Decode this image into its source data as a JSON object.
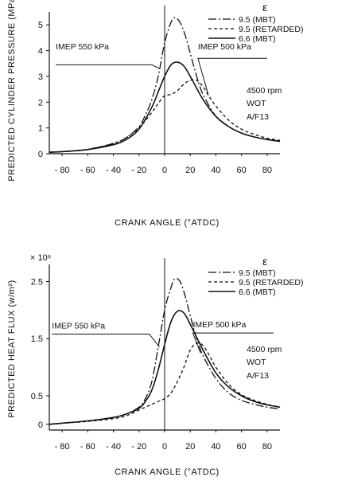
{
  "chart_data": [
    {
      "type": "line",
      "xlabel": "CRANK ANGLE (°ATDC)",
      "ylabel": "PREDICTED CYLINDER PRESSURE (MPa)",
      "y_multiplier": "",
      "xlim": [
        -90,
        90
      ],
      "ylim": [
        0,
        5.5
      ],
      "x_ticks": [
        -80,
        -60,
        -40,
        -20,
        0,
        20,
        40,
        60,
        80
      ],
      "x_tick_labels": [
        "- 80",
        "- 60",
        "- 40",
        "- 20",
        "0",
        "20",
        "40",
        "60",
        "80"
      ],
      "y_ticks": [
        0,
        1,
        2,
        3,
        4,
        5
      ],
      "y_tick_labels": [
        "0",
        "1",
        "2",
        "3",
        "4",
        "5"
      ],
      "legend_title": "ε",
      "legend_placement": "top-right",
      "conditions": [
        "4500 rpm",
        "WOT",
        "A/F13"
      ],
      "annotations": [
        {
          "text": "IMEP 550 kPa",
          "target_series": "9.5 (MBT)",
          "target_x": -4,
          "target_y": 3.3,
          "label_x": -85,
          "label_y": 4.05,
          "label_y_line": 3.45,
          "line_x_end": -10
        },
        {
          "text": "IMEP 500 kPa",
          "target_series": "6.6 (MBT)",
          "target_x": 34,
          "target_y": 2.3,
          "label_x": 26,
          "label_y": 4.05,
          "label_y_line": 3.7,
          "line_x_end": 80
        }
      ],
      "series": [
        {
          "name": "9.5 (MBT)",
          "style": "dashdot",
          "x": [
            -90,
            -80,
            -60,
            -40,
            -30,
            -20,
            -15,
            -10,
            -5,
            0,
            5,
            8,
            12,
            16,
            20,
            25,
            30,
            40,
            50,
            60,
            70,
            80,
            90
          ],
          "y": [
            0.06,
            0.08,
            0.17,
            0.4,
            0.62,
            1.05,
            1.5,
            2.1,
            3.0,
            4.3,
            5.1,
            5.28,
            5.1,
            4.6,
            3.9,
            3.0,
            2.3,
            1.45,
            1.05,
            0.8,
            0.65,
            0.55,
            0.48
          ]
        },
        {
          "name": "9.5 (RETARDED)",
          "style": "dashed",
          "x": [
            -90,
            -80,
            -60,
            -40,
            -30,
            -20,
            -10,
            -5,
            0,
            5,
            10,
            15,
            20,
            25,
            30,
            35,
            40,
            50,
            60,
            70,
            80,
            90
          ],
          "y": [
            0.06,
            0.08,
            0.17,
            0.4,
            0.62,
            1.0,
            1.6,
            1.95,
            2.25,
            2.3,
            2.45,
            2.7,
            2.85,
            2.85,
            2.6,
            2.2,
            1.85,
            1.3,
            0.95,
            0.75,
            0.6,
            0.52
          ]
        },
        {
          "name": "6.6 (MBT)",
          "style": "solid",
          "x": [
            -90,
            -80,
            -60,
            -40,
            -30,
            -20,
            -10,
            -5,
            0,
            5,
            10,
            15,
            20,
            30,
            40,
            50,
            60,
            70,
            80,
            90
          ],
          "y": [
            0.06,
            0.08,
            0.16,
            0.35,
            0.55,
            0.95,
            1.8,
            2.4,
            3.0,
            3.45,
            3.55,
            3.4,
            3.0,
            2.1,
            1.45,
            1.05,
            0.8,
            0.65,
            0.55,
            0.48
          ]
        }
      ]
    },
    {
      "type": "line",
      "xlabel": "CRANK ANGLE (°ATDC)",
      "ylabel": "PREDICTED HEAT FLUX (w/m²)",
      "y_multiplier": "× 10⁶",
      "xlim": [
        -90,
        90
      ],
      "ylim": [
        -0.1,
        2.8
      ],
      "x_ticks": [
        -80,
        -60,
        -40,
        -20,
        0,
        20,
        40,
        60,
        80
      ],
      "x_tick_labels": [
        "- 80",
        "- 60",
        "- 40",
        "- 20",
        "0",
        "20",
        "40",
        "60",
        "80"
      ],
      "y_ticks": [
        0,
        0.5,
        1.5,
        2.5
      ],
      "y_tick_labels": [
        "0",
        "0.5",
        "1.5",
        "2.5"
      ],
      "legend_title": "ε",
      "legend_placement": "top-right",
      "conditions": [
        "4500 rpm",
        "WOT",
        "A/F13"
      ],
      "annotations": [
        {
          "text": "IMEP 550 kPa",
          "target_series": "9.5 (MBT)",
          "target_x": -4,
          "target_y": 1.35,
          "label_x": -88,
          "label_y": 1.68,
          "label_y_line": 1.58,
          "line_x_end": -12
        },
        {
          "text": "IMEP 500 kPa",
          "target_series": "6.6 (MBT)",
          "target_x": 28,
          "target_y": 1.25,
          "label_x": 22,
          "label_y": 1.7,
          "label_y_line": 1.6,
          "line_x_end": 85
        }
      ],
      "series": [
        {
          "name": "9.5 (MBT)",
          "style": "dashdot",
          "x": [
            -90,
            -80,
            -60,
            -40,
            -30,
            -20,
            -15,
            -10,
            -5,
            0,
            5,
            8,
            12,
            16,
            20,
            25,
            30,
            40,
            50,
            60,
            70,
            80,
            90
          ],
          "y": [
            0.0,
            0.02,
            0.06,
            0.12,
            0.18,
            0.3,
            0.45,
            0.75,
            1.35,
            2.0,
            2.4,
            2.55,
            2.5,
            2.25,
            1.9,
            1.5,
            1.2,
            0.8,
            0.55,
            0.42,
            0.35,
            0.3,
            0.27
          ]
        },
        {
          "name": "9.5 (RETARDED)",
          "style": "dashed",
          "x": [
            -90,
            -80,
            -60,
            -40,
            -30,
            -20,
            -10,
            -5,
            0,
            5,
            10,
            15,
            20,
            25,
            30,
            35,
            40,
            50,
            60,
            70,
            80,
            90
          ],
          "y": [
            0.0,
            0.02,
            0.05,
            0.1,
            0.15,
            0.25,
            0.35,
            0.4,
            0.45,
            0.55,
            0.75,
            1.0,
            1.3,
            1.42,
            1.38,
            1.2,
            1.0,
            0.7,
            0.52,
            0.42,
            0.35,
            0.3
          ]
        },
        {
          "name": "6.6 (MBT)",
          "style": "solid",
          "x": [
            -90,
            -80,
            -60,
            -40,
            -30,
            -20,
            -15,
            -10,
            -5,
            0,
            5,
            10,
            15,
            20,
            30,
            40,
            50,
            60,
            70,
            80,
            90
          ],
          "y": [
            0.0,
            0.02,
            0.06,
            0.12,
            0.18,
            0.28,
            0.4,
            0.6,
            0.95,
            1.4,
            1.8,
            1.98,
            1.95,
            1.75,
            1.3,
            0.9,
            0.65,
            0.5,
            0.4,
            0.34,
            0.3
          ]
        }
      ]
    }
  ]
}
